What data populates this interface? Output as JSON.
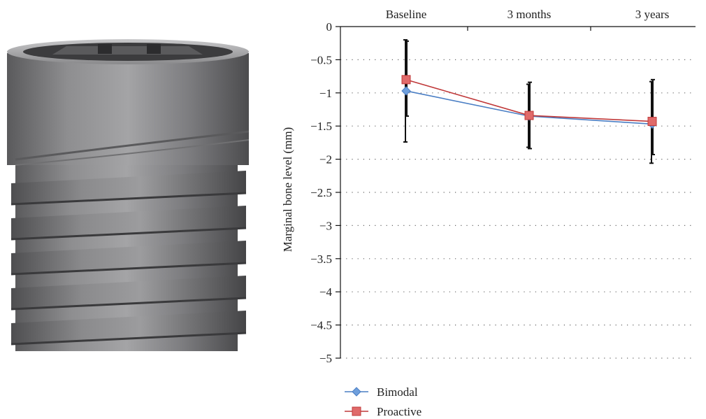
{
  "colors": {
    "bimodal": "#4a7ec4",
    "proactive": "#c0393a",
    "proactive_fill": "#e06a6a",
    "bimodal_fill": "#6f9fdc",
    "errorbar": "#111111",
    "grid": "#666666"
  },
  "photo": {
    "icon": "dental-implant-photo"
  },
  "chart_data": {
    "type": "line",
    "title": "",
    "xlabel": "",
    "ylabel": "Marginal bone level (mm)",
    "categories": [
      "Baseline",
      "3 months",
      "3 years"
    ],
    "x_axis_position": "top",
    "ylim": [
      -5,
      0
    ],
    "yticks": [
      0,
      -0.5,
      -1,
      -1.5,
      -2,
      -2.5,
      -3,
      -3.5,
      -4,
      -4.5,
      -5
    ],
    "ytick_labels": [
      "0",
      "−0.5",
      "−1",
      "−1.5",
      "−2",
      "−2.5",
      "−3",
      "−3.5",
      "−4",
      "−4.5",
      "−5"
    ],
    "grid": "horizontal dotted",
    "legend_position": "bottom-left",
    "series": [
      {
        "name": "Bimodal",
        "marker": "diamond",
        "values": [
          -0.97,
          -1.35,
          -1.47
        ],
        "error_low": [
          -1.74,
          -1.82,
          -2.06
        ],
        "error_high": [
          -0.2,
          -0.87,
          -0.83
        ]
      },
      {
        "name": "Proactive",
        "marker": "square",
        "values": [
          -0.8,
          -1.34,
          -1.43
        ],
        "error_low": [
          -1.35,
          -1.84,
          -1.93
        ],
        "error_high": [
          -0.22,
          -0.84,
          -0.8
        ]
      }
    ]
  }
}
